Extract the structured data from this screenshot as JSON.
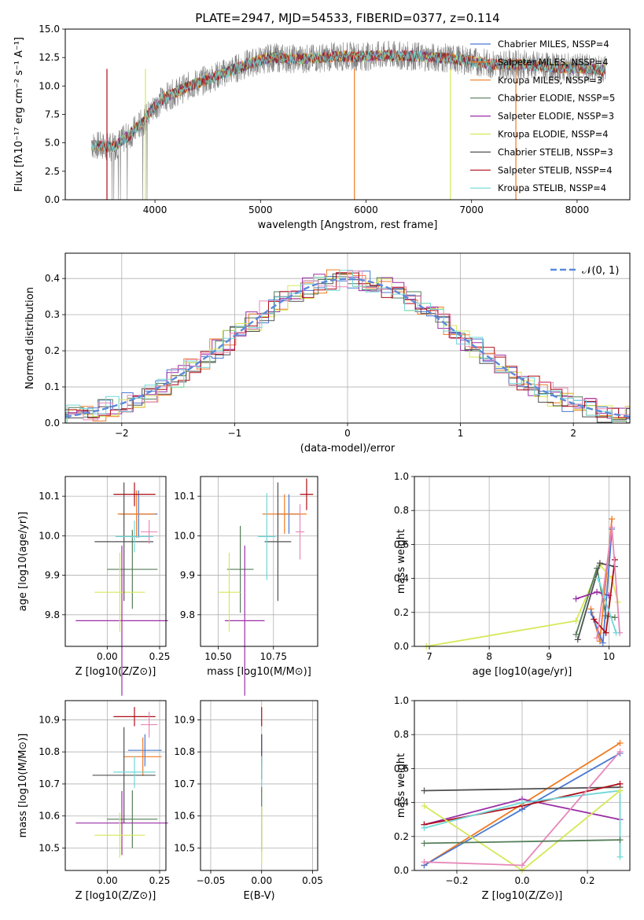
{
  "colors": [
    "#4a78d2",
    "#f07a21",
    "#547d58",
    "#9a2fa6",
    "#d6e858",
    "#505050",
    "#ad0d17",
    "#70d7d8",
    "#e787b8"
  ],
  "chart_data": [
    {
      "type": "line",
      "title": "PLATE=2947, MJD=54533, FIBERID=0377, z=0.114",
      "xlabel": "wavelength [Angstrom, rest frame]",
      "ylabel": "Flux [fλ10⁻¹⁷ erg cm⁻² s⁻¹ A⁻¹]",
      "xlim": [
        3150,
        8500
      ],
      "ylim": [
        0,
        15
      ],
      "xticks": [
        "4000",
        "5000",
        "6000",
        "7000",
        "8000"
      ],
      "yticks": [
        "0.0",
        "2.5",
        "5.0",
        "7.5",
        "10.0",
        "12.5",
        "15.0"
      ],
      "legend_position": "top-right",
      "series": [
        {
          "name": "Chabrier MILES, NSSP=4",
          "color": "#4a78d2"
        },
        {
          "name": "Salpeter MILES, NSSP=4",
          "color": "#f07a21"
        },
        {
          "name": "Kroupa MILES, NSSP=3",
          "color": "#f07a21"
        },
        {
          "name": "Chabrier ELODIE, NSSP=5",
          "color": "#547d58"
        },
        {
          "name": "Salpeter ELODIE, NSSP=3",
          "color": "#9a2fa6"
        },
        {
          "name": "Kroupa ELODIE, NSSP=4",
          "color": "#d6e858"
        },
        {
          "name": "Chabrier STELIB, NSSP=3",
          "color": "#505050"
        },
        {
          "name": "Salpeter STELIB, NSSP=4",
          "color": "#ad0d17"
        },
        {
          "name": "Kroupa STELIB, NSSP=4",
          "color": "#70d7d8"
        }
      ],
      "continuum": {
        "x": [
          3400,
          3600,
          3750,
          3900,
          4000,
          4100,
          4300,
          4500,
          4700,
          4900,
          5100,
          5300,
          5500,
          5700,
          6000,
          6200,
          6500,
          6800,
          7000,
          7200,
          7500,
          7800,
          8000,
          8270
        ],
        "y": [
          4.8,
          4.6,
          5.6,
          7.0,
          8.3,
          9.0,
          9.9,
          10.6,
          11.3,
          12.0,
          12.5,
          12.4,
          12.4,
          12.6,
          12.6,
          12.7,
          12.6,
          12.4,
          12.2,
          11.9,
          11.9,
          11.6,
          11.6,
          11.4
        ]
      }
    },
    {
      "type": "line",
      "xlabel": "(data-model)/error",
      "ylabel": "Normed distribution",
      "xlim": [
        -2.5,
        2.5
      ],
      "ylim": [
        0,
        0.47
      ],
      "xticks": [
        "−2",
        "−1",
        "0",
        "1",
        "2"
      ],
      "yticks": [
        "0.0",
        "0.1",
        "0.2",
        "0.3",
        "0.4"
      ],
      "legend": "𝒩(0, 1)",
      "legend_position": "top-right",
      "gauss": {
        "mean": 0,
        "sigma": 1
      }
    },
    {
      "type": "scatter",
      "xlabel": "Z [log10(Z/Z⊙)]",
      "ylabel": "age  [log10(age/yr)]",
      "xlim": [
        -0.2,
        0.28
      ],
      "ylim": [
        9.72,
        10.15
      ],
      "xticks": [
        "0.00",
        "0.25"
      ],
      "yticks": [
        "9.8",
        "9.9",
        "10.0",
        "10.1"
      ],
      "points": [
        {
          "x": 0.15,
          "y": 10.055,
          "xe": 0.09,
          "ye": 0.06,
          "c": 0
        },
        {
          "x": 0.14,
          "y": 10.055,
          "xe": 0.09,
          "ye": 0.06,
          "c": 1
        },
        {
          "x": 0.12,
          "y": 9.915,
          "xe": 0.12,
          "ye": 0.1,
          "c": 2
        },
        {
          "x": 0.07,
          "y": 9.785,
          "xe": 0.22,
          "ye": 0.19,
          "c": 3
        },
        {
          "x": 0.06,
          "y": 9.857,
          "xe": 0.12,
          "ye": 0.1,
          "c": 4
        },
        {
          "x": 0.08,
          "y": 9.985,
          "xe": 0.14,
          "ye": 0.15,
          "c": 5
        },
        {
          "x": 0.13,
          "y": 10.105,
          "xe": 0.1,
          "ye": 0.03,
          "c": 6
        },
        {
          "x": 0.13,
          "y": 9.998,
          "xe": 0.09,
          "ye": 0.04,
          "c": 7
        },
        {
          "x": 0.2,
          "y": 10.01,
          "xe": 0.04,
          "ye": 0.03,
          "c": 8
        }
      ]
    },
    {
      "type": "scatter",
      "xlabel": "mass [log10(M/M⊙)]",
      "ylabel": "",
      "xlim": [
        10.42,
        10.95
      ],
      "ylim": [
        9.72,
        10.15
      ],
      "xticks": [
        "10.50",
        "10.75"
      ],
      "yticks": [
        "10.1",
        "10.0",
        "9.9",
        "9.8"
      ],
      "points": [
        {
          "x": 10.82,
          "y": 10.055,
          "xe": 0.05,
          "ye": 0.05,
          "c": 0
        },
        {
          "x": 10.8,
          "y": 10.055,
          "xe": 0.1,
          "ye": 0.05,
          "c": 1
        },
        {
          "x": 10.6,
          "y": 9.915,
          "xe": 0.06,
          "ye": 0.11,
          "c": 2
        },
        {
          "x": 10.62,
          "y": 9.785,
          "xe": 0.09,
          "ye": 0.19,
          "c": 3
        },
        {
          "x": 10.55,
          "y": 9.857,
          "xe": 0.05,
          "ye": 0.1,
          "c": 4
        },
        {
          "x": 10.77,
          "y": 9.985,
          "xe": 0.06,
          "ye": 0.15,
          "c": 5
        },
        {
          "x": 10.9,
          "y": 10.105,
          "xe": 0.03,
          "ye": 0.04,
          "c": 6
        },
        {
          "x": 10.72,
          "y": 9.998,
          "xe": 0.04,
          "ye": 0.11,
          "c": 7
        },
        {
          "x": 10.87,
          "y": 10.01,
          "xe": 0.02,
          "ye": 0.07,
          "c": 8
        }
      ]
    },
    {
      "type": "line",
      "xlabel": "age  [log10(age/yr)]",
      "ylabel": "mass weight",
      "xlim": [
        6.75,
        10.35
      ],
      "ylim": [
        0,
        1
      ],
      "xticks": [
        "7",
        "8",
        "9",
        "10"
      ],
      "yticks": [
        "0.0",
        "0.2",
        "0.4",
        "0.6",
        "0.8",
        "1.0"
      ],
      "series": [
        {
          "c": 4,
          "x": [
            6.95,
            9.45,
            9.85,
            10.05,
            10.15
          ],
          "y": [
            0.0,
            0.15,
            0.48,
            0.4,
            0.26
          ]
        },
        {
          "c": 2,
          "x": [
            9.45,
            9.8,
            9.95,
            10.1
          ],
          "y": [
            0.07,
            0.46,
            0.18,
            0.17
          ]
        },
        {
          "c": 5,
          "x": [
            9.48,
            9.85,
            10.1
          ],
          "y": [
            0.04,
            0.49,
            0.47
          ]
        },
        {
          "c": 3,
          "x": [
            9.45,
            9.8,
            10.0
          ],
          "y": [
            0.28,
            0.32,
            0.3
          ]
        },
        {
          "c": 1,
          "x": [
            9.7,
            9.85,
            10.05
          ],
          "y": [
            0.22,
            0.03,
            0.75
          ]
        },
        {
          "c": 0,
          "x": [
            9.7,
            9.9,
            10.05
          ],
          "y": [
            0.2,
            0.02,
            0.69
          ]
        },
        {
          "c": 6,
          "x": [
            9.75,
            9.95,
            10.1
          ],
          "y": [
            0.16,
            0.08,
            0.51
          ]
        },
        {
          "c": 8,
          "x": [
            9.8,
            10.05,
            10.18
          ],
          "y": [
            0.05,
            0.7,
            0.08
          ]
        },
        {
          "c": 7,
          "x": [
            9.82,
            10.12
          ],
          "y": [
            0.4,
            0.08
          ]
        }
      ]
    },
    {
      "type": "scatter",
      "xlabel": "Z [log10(Z/Z⊙)]",
      "ylabel": "mass [log10(M/M⊙)]",
      "xlim": [
        -0.2,
        0.28
      ],
      "ylim": [
        10.43,
        10.96
      ],
      "xticks": [
        "0.00",
        "0.25"
      ],
      "yticks": [
        "10.5",
        "10.6",
        "10.7",
        "10.8",
        "10.9"
      ],
      "points": [
        {
          "x": 0.18,
          "y": 10.805,
          "xe": 0.08,
          "ye": 0.05,
          "c": 0
        },
        {
          "x": 0.17,
          "y": 10.785,
          "xe": 0.09,
          "ye": 0.06,
          "c": 1
        },
        {
          "x": 0.12,
          "y": 10.59,
          "xe": 0.12,
          "ye": 0.09,
          "c": 2
        },
        {
          "x": 0.07,
          "y": 10.578,
          "xe": 0.22,
          "ye": 0.1,
          "c": 3
        },
        {
          "x": 0.06,
          "y": 10.54,
          "xe": 0.12,
          "ye": 0.07,
          "c": 4
        },
        {
          "x": 0.08,
          "y": 10.727,
          "xe": 0.15,
          "ye": 0.15,
          "c": 5
        },
        {
          "x": 0.13,
          "y": 10.91,
          "xe": 0.1,
          "ye": 0.03,
          "c": 6
        },
        {
          "x": 0.13,
          "y": 10.737,
          "xe": 0.1,
          "ye": 0.05,
          "c": 7
        },
        {
          "x": 0.2,
          "y": 10.885,
          "xe": 0.04,
          "ye": 0.04,
          "c": 8
        }
      ]
    },
    {
      "type": "scatter",
      "xlabel": "E(B-V)",
      "ylabel": "",
      "xlim": [
        -0.06,
        0.055
      ],
      "ylim": [
        10.43,
        10.96
      ],
      "xticks": [
        "−0.05",
        "0.00",
        "0.05"
      ],
      "yticks": [
        "10.9",
        "10.8",
        "10.7",
        "10.6",
        "10.5"
      ],
      "points": [
        {
          "x": 0,
          "y": 10.91,
          "xe": 0,
          "ye": 0.03,
          "c": 6
        },
        {
          "x": 0,
          "y": 10.805,
          "xe": 0,
          "ye": 0.05,
          "c": 0
        },
        {
          "x": 0,
          "y": 10.785,
          "xe": 0,
          "ye": 0.07,
          "c": 5
        },
        {
          "x": 0,
          "y": 10.737,
          "xe": 0,
          "ye": 0.05,
          "c": 7
        },
        {
          "x": 0,
          "y": 10.59,
          "xe": 0,
          "ye": 0.1,
          "c": 2
        },
        {
          "x": 0,
          "y": 10.54,
          "xe": 0,
          "ye": 0.09,
          "c": 4
        }
      ]
    },
    {
      "type": "line",
      "xlabel": "Z [log10(Z/Z⊙)]",
      "ylabel": "mass weight",
      "xlim": [
        -0.33,
        0.33
      ],
      "ylim": [
        0,
        1
      ],
      "xticks": [
        "−0.2",
        "0.0",
        "0.2"
      ],
      "yticks": [
        "0.0",
        "0.2",
        "0.4",
        "0.6",
        "0.8",
        "1.0"
      ],
      "series": [
        {
          "c": 1,
          "x": [
            -0.3,
            0.3
          ],
          "y": [
            0.03,
            0.75
          ]
        },
        {
          "c": 0,
          "x": [
            -0.3,
            0.0,
            0.3
          ],
          "y": [
            0.03,
            0.36,
            0.69
          ]
        },
        {
          "c": 5,
          "x": [
            -0.3,
            0.3
          ],
          "y": [
            0.47,
            0.49
          ]
        },
        {
          "c": 3,
          "x": [
            -0.3,
            0.0,
            0.3
          ],
          "y": [
            0.27,
            0.42,
            0.3
          ]
        },
        {
          "c": 6,
          "x": [
            -0.3,
            0.0,
            0.3
          ],
          "y": [
            0.27,
            0.38,
            0.51
          ]
        },
        {
          "c": 7,
          "x": [
            -0.3,
            0.0,
            0.3,
            0.3
          ],
          "y": [
            0.25,
            0.4,
            0.47,
            0.08
          ]
        },
        {
          "c": 4,
          "x": [
            -0.3,
            0.0,
            0.3
          ],
          "y": [
            0.38,
            0.0,
            0.47
          ]
        },
        {
          "c": 8,
          "x": [
            -0.3,
            0.0,
            0.3
          ],
          "y": [
            0.05,
            0.03,
            0.7
          ]
        },
        {
          "c": 2,
          "x": [
            -0.3,
            0.3
          ],
          "y": [
            0.16,
            0.18
          ]
        }
      ]
    }
  ]
}
